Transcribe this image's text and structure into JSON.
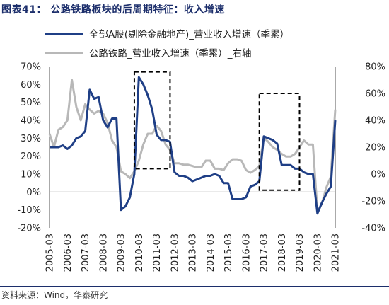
{
  "header": {
    "title": "图表41：  公路铁路板块的后周期特征：收入增速"
  },
  "footer": {
    "source": "资料来源：Wind，华泰研究"
  },
  "colors": {
    "series_main": "#1f3f86",
    "series_rail": "#b8b8b8",
    "title": "#1c2e6b",
    "box": "#000000"
  },
  "chart_data": {
    "type": "line",
    "title": "",
    "xlabel": "",
    "ylabel": "",
    "x_tick_labels": [
      "2005-03",
      "2006-03",
      "2007-03",
      "2008-03",
      "2009-03",
      "2010-03",
      "2011-03",
      "2012-03",
      "2013-03",
      "2014-03",
      "2015-03",
      "2016-03",
      "2017-03",
      "2018-03",
      "2019-03",
      "2020-03",
      "2021-03"
    ],
    "left_axis": {
      "ylim": [
        -20,
        70
      ],
      "tick_labels": [
        "70%",
        "60%",
        "50%",
        "40%",
        "30%",
        "20%",
        "10%",
        "0%",
        "-10%",
        "-20%"
      ],
      "tick_values": [
        70,
        60,
        50,
        40,
        30,
        20,
        10,
        0,
        -10,
        -20
      ]
    },
    "right_axis": {
      "ylim": [
        -40,
        80
      ],
      "tick_labels": [
        "80%",
        "60%",
        "40%",
        "20%",
        "0%",
        "-20%",
        "-40%"
      ],
      "tick_values": [
        80,
        60,
        40,
        20,
        0,
        -20,
        -40
      ]
    },
    "legend": {
      "placement": "top",
      "entries": [
        "全部A股(剔除金融地产)_营业收入增速（季累）",
        "公路铁路_营业收入增速（季累）_右轴"
      ]
    },
    "annotations": [
      {
        "type": "dashed-box",
        "x_start": "2009-12",
        "x_end": "2011-12",
        "y_top": 67,
        "y_bottom": 13,
        "axis": "left"
      },
      {
        "type": "dashed-box",
        "x_start": "2016-12",
        "x_end": "2019-03",
        "y_top": 55,
        "y_bottom": 1,
        "axis": "left"
      }
    ],
    "series": [
      {
        "name": "全部A股(剔除金融地产)_营业收入增速（季累）",
        "axis": "left",
        "points": [
          [
            "2005-03",
            25
          ],
          [
            "2005-06",
            25
          ],
          [
            "2005-09",
            25
          ],
          [
            "2005-12",
            26
          ],
          [
            "2006-03",
            24
          ],
          [
            "2006-06",
            26
          ],
          [
            "2006-09",
            30
          ],
          [
            "2006-12",
            31
          ],
          [
            "2007-03",
            34
          ],
          [
            "2007-06",
            57
          ],
          [
            "2007-09",
            52
          ],
          [
            "2007-12",
            53
          ],
          [
            "2008-03",
            40
          ],
          [
            "2008-06",
            36
          ],
          [
            "2008-09",
            41
          ],
          [
            "2008-12",
            41
          ],
          [
            "2009-03",
            -10
          ],
          [
            "2009-06",
            -8
          ],
          [
            "2009-09",
            -3
          ],
          [
            "2009-12",
            10
          ],
          [
            "2010-03",
            64
          ],
          [
            "2010-06",
            60
          ],
          [
            "2010-09",
            54
          ],
          [
            "2010-12",
            46
          ],
          [
            "2011-03",
            32
          ],
          [
            "2011-06",
            29
          ],
          [
            "2011-09",
            29
          ],
          [
            "2011-12",
            28
          ],
          [
            "2012-03",
            11
          ],
          [
            "2012-06",
            9
          ],
          [
            "2012-09",
            9
          ],
          [
            "2012-12",
            8
          ],
          [
            "2013-03",
            6
          ],
          [
            "2013-06",
            7
          ],
          [
            "2013-09",
            8
          ],
          [
            "2013-12",
            9
          ],
          [
            "2014-03",
            9
          ],
          [
            "2014-06",
            10
          ],
          [
            "2014-09",
            9
          ],
          [
            "2014-12",
            5
          ],
          [
            "2015-03",
            5
          ],
          [
            "2015-06",
            -4
          ],
          [
            "2015-09",
            -4
          ],
          [
            "2015-12",
            -4
          ],
          [
            "2016-03",
            -3
          ],
          [
            "2016-06",
            3
          ],
          [
            "2016-09",
            4
          ],
          [
            "2016-12",
            6
          ],
          [
            "2017-03",
            31
          ],
          [
            "2017-06",
            30
          ],
          [
            "2017-09",
            29
          ],
          [
            "2017-12",
            27
          ],
          [
            "2018-03",
            15
          ],
          [
            "2018-06",
            15
          ],
          [
            "2018-09",
            15
          ],
          [
            "2018-12",
            13
          ],
          [
            "2019-03",
            13
          ],
          [
            "2019-06",
            11
          ],
          [
            "2019-09",
            10
          ],
          [
            "2019-12",
            10
          ],
          [
            "2020-03",
            -12
          ],
          [
            "2020-06",
            -6
          ],
          [
            "2020-09",
            -1
          ],
          [
            "2020-12",
            3
          ],
          [
            "2021-03",
            40
          ]
        ]
      },
      {
        "name": "公路铁路_营业收入增速（季累）_右轴",
        "axis": "right",
        "points": [
          [
            "2005-03",
            30
          ],
          [
            "2005-06",
            20
          ],
          [
            "2005-09",
            33
          ],
          [
            "2005-12",
            35
          ],
          [
            "2006-03",
            40
          ],
          [
            "2006-06",
            70
          ],
          [
            "2006-09",
            50
          ],
          [
            "2006-12",
            40
          ],
          [
            "2007-03",
            52
          ],
          [
            "2007-06",
            48
          ],
          [
            "2007-09",
            45
          ],
          [
            "2007-12",
            47
          ],
          [
            "2008-03",
            45
          ],
          [
            "2008-06",
            38
          ],
          [
            "2008-09",
            25
          ],
          [
            "2008-12",
            20
          ],
          [
            "2009-03",
            2
          ],
          [
            "2009-06",
            0
          ],
          [
            "2009-09",
            -3
          ],
          [
            "2009-12",
            2
          ],
          [
            "2010-03",
            10
          ],
          [
            "2010-06",
            22
          ],
          [
            "2010-09",
            30
          ],
          [
            "2010-12",
            30
          ],
          [
            "2011-03",
            36
          ],
          [
            "2011-06",
            32
          ],
          [
            "2011-09",
            22
          ],
          [
            "2011-12",
            18
          ],
          [
            "2012-03",
            8
          ],
          [
            "2012-06",
            8
          ],
          [
            "2012-09",
            7
          ],
          [
            "2012-12",
            7
          ],
          [
            "2013-03",
            6
          ],
          [
            "2013-06",
            5
          ],
          [
            "2013-09",
            5
          ],
          [
            "2013-12",
            10
          ],
          [
            "2014-03",
            10
          ],
          [
            "2014-06",
            4
          ],
          [
            "2014-09",
            4
          ],
          [
            "2014-12",
            3
          ],
          [
            "2015-03",
            8
          ],
          [
            "2015-06",
            11
          ],
          [
            "2015-09",
            11
          ],
          [
            "2015-12",
            10
          ],
          [
            "2016-03",
            3
          ],
          [
            "2016-06",
            1
          ],
          [
            "2016-09",
            3
          ],
          [
            "2016-12",
            6
          ],
          [
            "2017-03",
            27
          ],
          [
            "2017-06",
            24
          ],
          [
            "2017-09",
            20
          ],
          [
            "2017-12",
            18
          ],
          [
            "2018-03",
            15
          ],
          [
            "2018-06",
            13
          ],
          [
            "2018-09",
            13
          ],
          [
            "2018-12",
            15
          ],
          [
            "2019-03",
            20
          ],
          [
            "2019-06",
            25
          ],
          [
            "2019-09",
            22
          ],
          [
            "2019-12",
            22
          ],
          [
            "2020-03",
            -28
          ],
          [
            "2020-06",
            -22
          ],
          [
            "2020-09",
            -10
          ],
          [
            "2020-12",
            -2
          ],
          [
            "2021-03",
            48
          ]
        ]
      }
    ]
  }
}
